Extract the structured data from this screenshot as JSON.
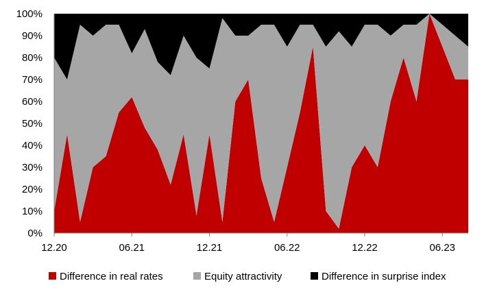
{
  "chart_data": {
    "type": "area",
    "stacked": true,
    "normalized_percent": true,
    "x_tick_labels": [
      "12.20",
      "06.21",
      "12.21",
      "06.22",
      "12.22",
      "06.23"
    ],
    "y_tick_labels": [
      "0%",
      "10%",
      "20%",
      "30%",
      "40%",
      "50%",
      "60%",
      "70%",
      "80%",
      "90%",
      "100%"
    ],
    "ylim": [
      0,
      100
    ],
    "grid": false,
    "legend_position": "bottom",
    "x": [
      "12.20",
      "01.21",
      "02.21",
      "03.21",
      "04.21",
      "05.21",
      "06.21",
      "07.21",
      "08.21",
      "09.21",
      "10.21",
      "11.21",
      "12.21",
      "01.22",
      "02.22",
      "03.22",
      "04.22",
      "05.22",
      "06.22",
      "07.22",
      "08.22",
      "09.22",
      "10.22",
      "11.22",
      "12.22",
      "01.23",
      "02.23",
      "03.23",
      "04.23",
      "05.23",
      "06.23",
      "07.23",
      "08.23"
    ],
    "series": [
      {
        "name": "Difference in real rates",
        "color": "#c00000",
        "values": [
          10,
          45,
          5,
          30,
          35,
          55,
          62,
          48,
          38,
          22,
          45,
          8,
          45,
          5,
          60,
          70,
          25,
          5,
          30,
          55,
          85,
          10,
          2,
          30,
          40,
          30,
          60,
          80,
          60,
          100,
          85,
          70,
          70
        ]
      },
      {
        "name": "Equity attractivity",
        "color": "#a6a6a6",
        "values": [
          70,
          25,
          90,
          60,
          60,
          40,
          20,
          45,
          40,
          50,
          45,
          72,
          30,
          93,
          30,
          20,
          70,
          90,
          55,
          40,
          10,
          75,
          90,
          55,
          55,
          65,
          30,
          15,
          35,
          0,
          10,
          20,
          15
        ]
      },
      {
        "name": "Difference in surprise index",
        "color": "#000000",
        "values": [
          20,
          30,
          5,
          10,
          5,
          5,
          18,
          7,
          22,
          28,
          10,
          20,
          25,
          2,
          10,
          10,
          5,
          5,
          15,
          5,
          5,
          15,
          8,
          15,
          5,
          5,
          10,
          5,
          5,
          0,
          5,
          10,
          15
        ]
      }
    ]
  }
}
